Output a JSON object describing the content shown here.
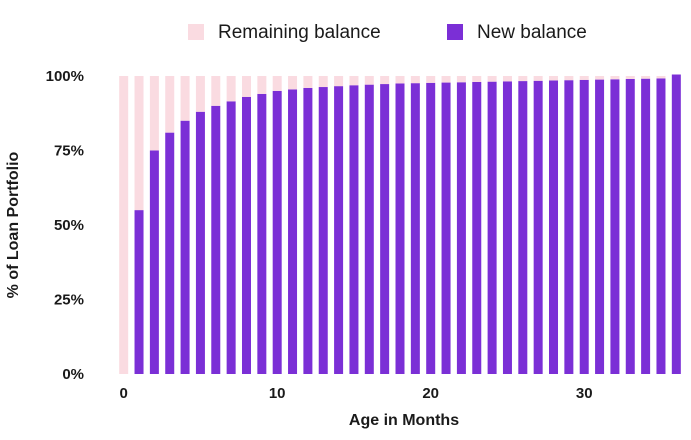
{
  "colors": {
    "remaining": "#fadbe1",
    "new": "#7b2fd6",
    "text": "#1a1a1a"
  },
  "chart_data": {
    "type": "bar",
    "stacked": true,
    "xlabel": "Age in Months",
    "ylabel": "% of Loan Portfolio",
    "x": [
      0,
      1,
      2,
      3,
      4,
      5,
      6,
      7,
      8,
      9,
      10,
      11,
      12,
      13,
      14,
      15,
      16,
      17,
      18,
      19,
      20,
      21,
      22,
      23,
      24,
      25,
      26,
      27,
      28,
      29,
      30,
      31,
      32,
      33,
      34,
      35,
      36
    ],
    "xticks": [
      0,
      10,
      20,
      30
    ],
    "xlim": [
      -0.5,
      36.5
    ],
    "ylim": [
      0,
      100
    ],
    "yticks": [
      0,
      25,
      50,
      75,
      100
    ],
    "ytick_labels": [
      "0%",
      "25%",
      "50%",
      "75%",
      "100%"
    ],
    "legend_position": "top",
    "series": [
      {
        "name": "New balance",
        "values": [
          0,
          55,
          75,
          81,
          85,
          88,
          90,
          91.5,
          93,
          94,
          95,
          95.5,
          96,
          96.3,
          96.6,
          96.9,
          97.1,
          97.3,
          97.5,
          97.6,
          97.7,
          97.8,
          97.9,
          98,
          98.1,
          98.2,
          98.3,
          98.4,
          98.5,
          98.6,
          98.7,
          98.8,
          98.9,
          99,
          99.1,
          99.2,
          100.5
        ]
      },
      {
        "name": "Remaining balance",
        "values": [
          100,
          45,
          25,
          19,
          15,
          12,
          10,
          8.5,
          7,
          6,
          5,
          4.5,
          4,
          3.7,
          3.4,
          3.1,
          2.9,
          2.7,
          2.5,
          2.4,
          2.3,
          2.2,
          2.1,
          2,
          1.9,
          1.8,
          1.7,
          1.6,
          1.5,
          1.4,
          1.3,
          1.2,
          1.1,
          1,
          0.9,
          0.8,
          0
        ]
      }
    ]
  }
}
